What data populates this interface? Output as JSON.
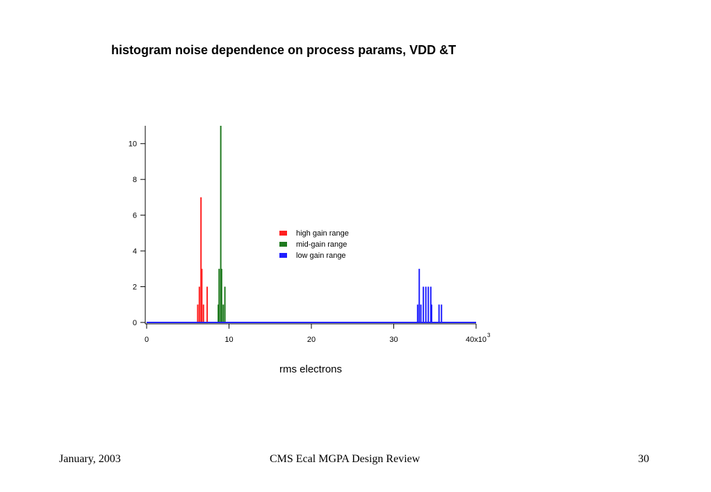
{
  "slide": {
    "title": "histogram noise dependence on process params, VDD &T"
  },
  "footer": {
    "date": "January, 2003",
    "presentation": "CMS Ecal MGPA Design Review",
    "page": "30"
  },
  "chart_data": {
    "type": "bar",
    "title": "",
    "xlabel": "rms electrons",
    "ylabel": "",
    "xlim": [
      0,
      40000
    ],
    "ylim": [
      0,
      11
    ],
    "x_ticks": [
      0,
      10000,
      20000,
      30000,
      40000
    ],
    "x_tick_labels": [
      "0",
      "10",
      "20",
      "30",
      "40x10"
    ],
    "x_tick_suffix_superscript": "3",
    "y_ticks": [
      0,
      2,
      4,
      6,
      8,
      10
    ],
    "y_tick_labels": [
      "0",
      "2",
      "4",
      "6",
      "8",
      "10"
    ],
    "grid": false,
    "legend_position": "center",
    "series": [
      {
        "name": "high gain range",
        "color": "#ff1f1f",
        "points": [
          {
            "x": 6200,
            "y": 1
          },
          {
            "x": 6400,
            "y": 2
          },
          {
            "x": 6600,
            "y": 7
          },
          {
            "x": 6700,
            "y": 3
          },
          {
            "x": 6900,
            "y": 1
          },
          {
            "x": 7350,
            "y": 2
          }
        ]
      },
      {
        "name": "mid-gain range",
        "color": "#1f7a1f",
        "points": [
          {
            "x": 8700,
            "y": 1
          },
          {
            "x": 8800,
            "y": 3
          },
          {
            "x": 9000,
            "y": 11
          },
          {
            "x": 9100,
            "y": 3
          },
          {
            "x": 9300,
            "y": 1
          },
          {
            "x": 9500,
            "y": 2
          }
        ]
      },
      {
        "name": "low gain range",
        "color": "#1f1fff",
        "points": [
          {
            "x": 32900,
            "y": 1
          },
          {
            "x": 33100,
            "y": 3
          },
          {
            "x": 33300,
            "y": 1
          },
          {
            "x": 33600,
            "y": 2
          },
          {
            "x": 33900,
            "y": 2
          },
          {
            "x": 34200,
            "y": 2
          },
          {
            "x": 34500,
            "y": 2
          },
          {
            "x": 34600,
            "y": 1
          },
          {
            "x": 35500,
            "y": 1
          },
          {
            "x": 35800,
            "y": 1
          }
        ]
      }
    ]
  }
}
